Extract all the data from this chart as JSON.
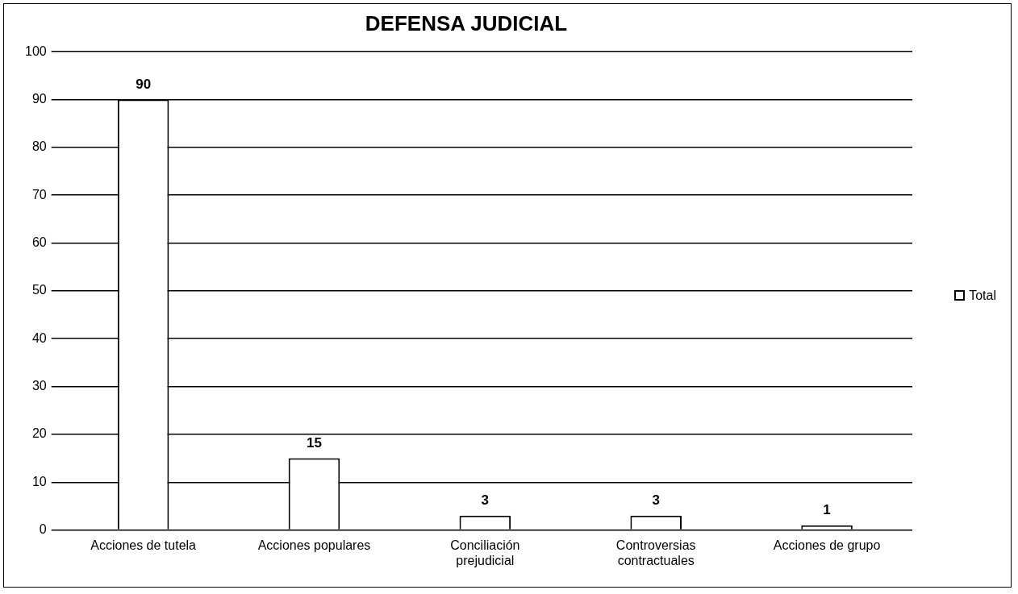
{
  "chart_data": {
    "type": "bar",
    "title": "DEFENSA JUDICIAL",
    "categories": [
      "Acciones de tutela",
      "Acciones populares",
      "Conciliación prejudicial",
      "Controversias contractuales",
      "Acciones de grupo"
    ],
    "series": [
      {
        "name": "Total",
        "color": "#ffffff",
        "values": [
          90,
          15,
          3,
          3,
          1
        ]
      }
    ],
    "ylim": [
      0,
      100
    ],
    "yticks": [
      0,
      10,
      20,
      30,
      40,
      50,
      60,
      70,
      80,
      90,
      100
    ],
    "grid": "y",
    "legend": "right",
    "data_labels": true
  }
}
